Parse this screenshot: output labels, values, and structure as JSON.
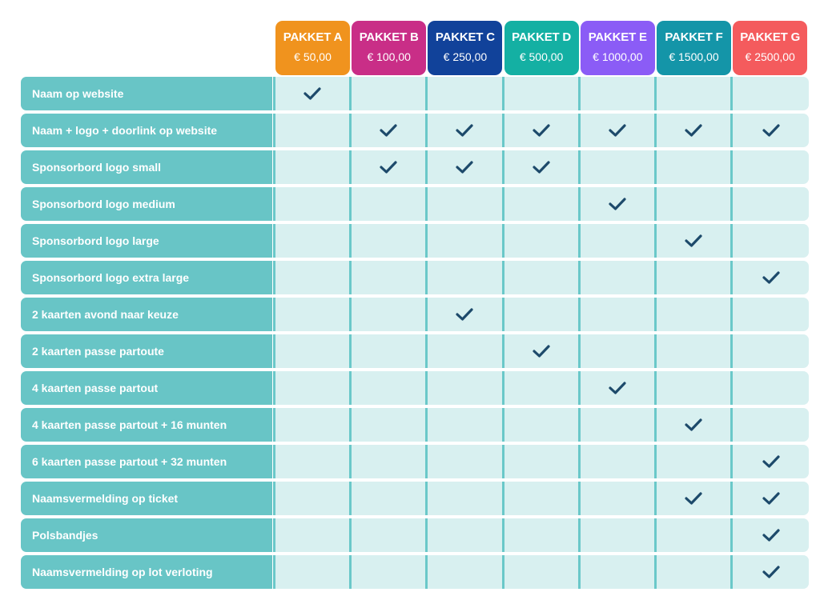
{
  "colors": {
    "check": "#1d4a6b",
    "label_bg": "#68c5c6",
    "cell_bg": "#d8f0f0",
    "divider": "#6ac8c9"
  },
  "packages": [
    {
      "name": "PAKKET A",
      "price": "€ 50,00",
      "color": "#f0931e"
    },
    {
      "name": "PAKKET B",
      "price": "€ 100,00",
      "color": "#c92e87"
    },
    {
      "name": "PAKKET C",
      "price": "€ 250,00",
      "color": "#11429a"
    },
    {
      "name": "PAKKET D",
      "price": "€ 500,00",
      "color": "#14b0a3"
    },
    {
      "name": "PAKKET E",
      "price": "€ 1000,00",
      "color": "#8b5cf6"
    },
    {
      "name": "PAKKET F",
      "price": "€ 1500,00",
      "color": "#1495a8"
    },
    {
      "name": "PAKKET G",
      "price": "€ 2500,00",
      "color": "#f45b5d"
    }
  ],
  "features": [
    {
      "label": "Naam op website",
      "checks": [
        true,
        false,
        false,
        false,
        false,
        false,
        false
      ]
    },
    {
      "label": "Naam + logo + doorlink op website",
      "checks": [
        false,
        true,
        true,
        true,
        true,
        true,
        true
      ]
    },
    {
      "label": "Sponsorbord logo small",
      "checks": [
        false,
        true,
        true,
        true,
        false,
        false,
        false
      ]
    },
    {
      "label": "Sponsorbord logo medium",
      "checks": [
        false,
        false,
        false,
        false,
        true,
        false,
        false
      ]
    },
    {
      "label": "Sponsorbord logo large",
      "checks": [
        false,
        false,
        false,
        false,
        false,
        true,
        false
      ]
    },
    {
      "label": "Sponsorbord logo extra large",
      "checks": [
        false,
        false,
        false,
        false,
        false,
        false,
        true
      ]
    },
    {
      "label": "2 kaarten avond naar keuze",
      "checks": [
        false,
        false,
        true,
        false,
        false,
        false,
        false
      ]
    },
    {
      "label": "2 kaarten passe partoute",
      "checks": [
        false,
        false,
        false,
        true,
        false,
        false,
        false
      ]
    },
    {
      "label": "4 kaarten passe partout",
      "checks": [
        false,
        false,
        false,
        false,
        true,
        false,
        false
      ]
    },
    {
      "label": "4 kaarten passe partout + 16 munten",
      "checks": [
        false,
        false,
        false,
        false,
        false,
        true,
        false
      ]
    },
    {
      "label": "6 kaarten passe partout + 32 munten",
      "checks": [
        false,
        false,
        false,
        false,
        false,
        false,
        true
      ]
    },
    {
      "label": "Naamsvermelding op ticket",
      "checks": [
        false,
        false,
        false,
        false,
        false,
        true,
        true
      ]
    },
    {
      "label": "Polsbandjes",
      "checks": [
        false,
        false,
        false,
        false,
        false,
        false,
        true
      ]
    },
    {
      "label": "Naamsvermelding op lot verloting",
      "checks": [
        false,
        false,
        false,
        false,
        false,
        false,
        true
      ]
    }
  ]
}
